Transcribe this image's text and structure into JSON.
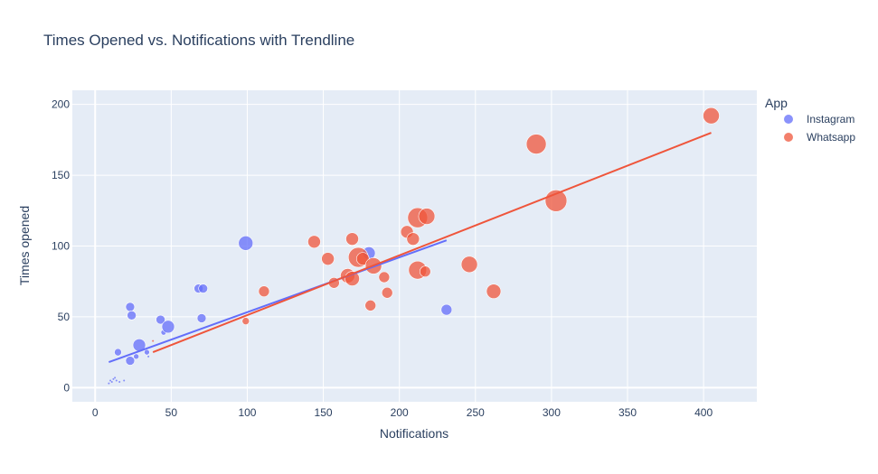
{
  "chart_data": {
    "type": "scatter",
    "title": "Times Opened vs. Notifications with Trendline",
    "xlabel": "Notifications",
    "ylabel": "Times opened",
    "xlim": [
      -15,
      435
    ],
    "ylim": [
      -10,
      210
    ],
    "xticks": [
      0,
      50,
      100,
      150,
      200,
      250,
      300,
      350,
      400
    ],
    "yticks": [
      0,
      50,
      100,
      150,
      200
    ],
    "legend_title": "App",
    "series": [
      {
        "name": "Instagram",
        "color": "#636efa",
        "points": [
          {
            "x": 9,
            "y": 3,
            "size": 1
          },
          {
            "x": 10,
            "y": 5,
            "size": 1
          },
          {
            "x": 11,
            "y": 4,
            "size": 1
          },
          {
            "x": 12,
            "y": 6,
            "size": 1
          },
          {
            "x": 13,
            "y": 7,
            "size": 1
          },
          {
            "x": 14,
            "y": 5,
            "size": 1
          },
          {
            "x": 16,
            "y": 4,
            "size": 1
          },
          {
            "x": 19,
            "y": 5,
            "size": 1
          },
          {
            "x": 15,
            "y": 25,
            "size": 4
          },
          {
            "x": 23,
            "y": 57,
            "size": 5
          },
          {
            "x": 24,
            "y": 51,
            "size": 5
          },
          {
            "x": 23,
            "y": 19,
            "size": 5
          },
          {
            "x": 27,
            "y": 22,
            "size": 3
          },
          {
            "x": 29,
            "y": 30,
            "size": 7
          },
          {
            "x": 34,
            "y": 25,
            "size": 3
          },
          {
            "x": 35,
            "y": 22,
            "size": 1
          },
          {
            "x": 43,
            "y": 48,
            "size": 5
          },
          {
            "x": 45,
            "y": 39,
            "size": 3
          },
          {
            "x": 48,
            "y": 43,
            "size": 7
          },
          {
            "x": 68,
            "y": 70,
            "size": 5
          },
          {
            "x": 71,
            "y": 70,
            "size": 5
          },
          {
            "x": 70,
            "y": 49,
            "size": 5
          },
          {
            "x": 99,
            "y": 102,
            "size": 8
          },
          {
            "x": 180,
            "y": 95,
            "size": 7
          },
          {
            "x": 231,
            "y": 55,
            "size": 6
          }
        ],
        "trendline": [
          [
            9,
            18
          ],
          [
            231,
            104
          ]
        ]
      },
      {
        "name": "Whatsapp",
        "color": "#ef553b",
        "points": [
          {
            "x": 38,
            "y": 33,
            "size": 1
          },
          {
            "x": 99,
            "y": 47,
            "size": 4
          },
          {
            "x": 111,
            "y": 68,
            "size": 6
          },
          {
            "x": 144,
            "y": 103,
            "size": 7
          },
          {
            "x": 153,
            "y": 91,
            "size": 7
          },
          {
            "x": 157,
            "y": 74,
            "size": 6
          },
          {
            "x": 166,
            "y": 79,
            "size": 8
          },
          {
            "x": 169,
            "y": 105,
            "size": 7
          },
          {
            "x": 169,
            "y": 77,
            "size": 8
          },
          {
            "x": 173,
            "y": 92,
            "size": 11
          },
          {
            "x": 176,
            "y": 91,
            "size": 7
          },
          {
            "x": 181,
            "y": 58,
            "size": 6
          },
          {
            "x": 183,
            "y": 86,
            "size": 9
          },
          {
            "x": 190,
            "y": 78,
            "size": 6
          },
          {
            "x": 192,
            "y": 67,
            "size": 6
          },
          {
            "x": 205,
            "y": 110,
            "size": 7
          },
          {
            "x": 209,
            "y": 105,
            "size": 7
          },
          {
            "x": 212,
            "y": 120,
            "size": 11
          },
          {
            "x": 212,
            "y": 83,
            "size": 10
          },
          {
            "x": 217,
            "y": 82,
            "size": 6
          },
          {
            "x": 218,
            "y": 121,
            "size": 9
          },
          {
            "x": 246,
            "y": 87,
            "size": 9
          },
          {
            "x": 262,
            "y": 68,
            "size": 8
          },
          {
            "x": 290,
            "y": 172,
            "size": 11
          },
          {
            "x": 303,
            "y": 132,
            "size": 12
          },
          {
            "x": 405,
            "y": 192,
            "size": 9
          }
        ],
        "trendline": [
          [
            38,
            25
          ],
          [
            405,
            180
          ]
        ]
      }
    ]
  }
}
